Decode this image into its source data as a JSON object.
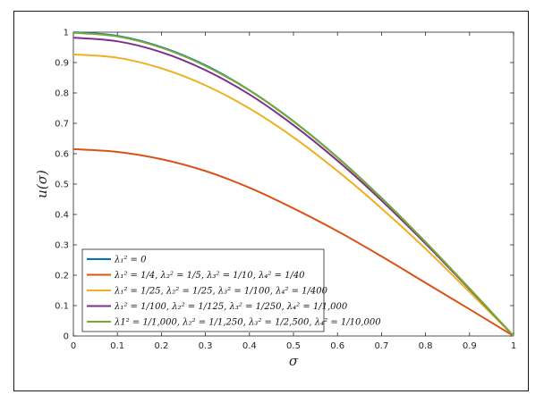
{
  "chart_data": {
    "type": "line",
    "xlabel": "σ",
    "ylabel": "u(σ)",
    "xlim": [
      0,
      1
    ],
    "ylim": [
      0,
      1
    ],
    "x_ticks": [
      "0",
      "0.1",
      "0.2",
      "0.3",
      "0.4",
      "0.5",
      "0.6",
      "0.7",
      "0.8",
      "0.9",
      "1"
    ],
    "y_ticks": [
      "0",
      "0.1",
      "0.2",
      "0.3",
      "0.4",
      "0.5",
      "0.6",
      "0.7",
      "0.8",
      "0.9",
      "1"
    ],
    "grid": false,
    "legend_position": "bottom-left",
    "x": [
      0,
      0.1,
      0.2,
      0.3,
      0.4,
      0.5,
      0.6,
      0.7,
      0.8,
      0.9,
      1.0
    ],
    "series": [
      {
        "name": "λ₁² = 0",
        "color": "#0072BD",
        "values": [
          1.0,
          0.988,
          0.951,
          0.891,
          0.809,
          0.707,
          0.588,
          0.454,
          0.309,
          0.156,
          0.0
        ]
      },
      {
        "name": "λ₁² = 1/4, λ₂² = 1/5, λ₃² = 1/10, λ₄² = 1/40",
        "color": "#D95319",
        "values": [
          0.615,
          0.606,
          0.582,
          0.543,
          0.488,
          0.42,
          0.345,
          0.262,
          0.175,
          0.088,
          0.0
        ]
      },
      {
        "name": "λ₁² = 1/25, λ₂² = 1/25, λ₃² = 1/100, λ₄² = 1/400",
        "color": "#EDB120",
        "values": [
          0.927,
          0.916,
          0.881,
          0.825,
          0.749,
          0.654,
          0.543,
          0.42,
          0.287,
          0.145,
          0.0
        ]
      },
      {
        "name": "λ₁² = 1/100, λ₂² = 1/125, λ₃² = 1/250, λ₄² = 1/1,000",
        "color": "#7E2F8E",
        "values": [
          0.982,
          0.97,
          0.934,
          0.875,
          0.795,
          0.694,
          0.577,
          0.446,
          0.304,
          0.154,
          0.0
        ]
      },
      {
        "name": "λ1² = 1/1,000, λ₂² = 1/1,250, λ₃² = 1/2,500, λ₄² = 1/10,000",
        "color": "#77AC30",
        "values": [
          0.998,
          0.986,
          0.949,
          0.889,
          0.808,
          0.706,
          0.587,
          0.453,
          0.309,
          0.156,
          0.0
        ]
      }
    ]
  }
}
